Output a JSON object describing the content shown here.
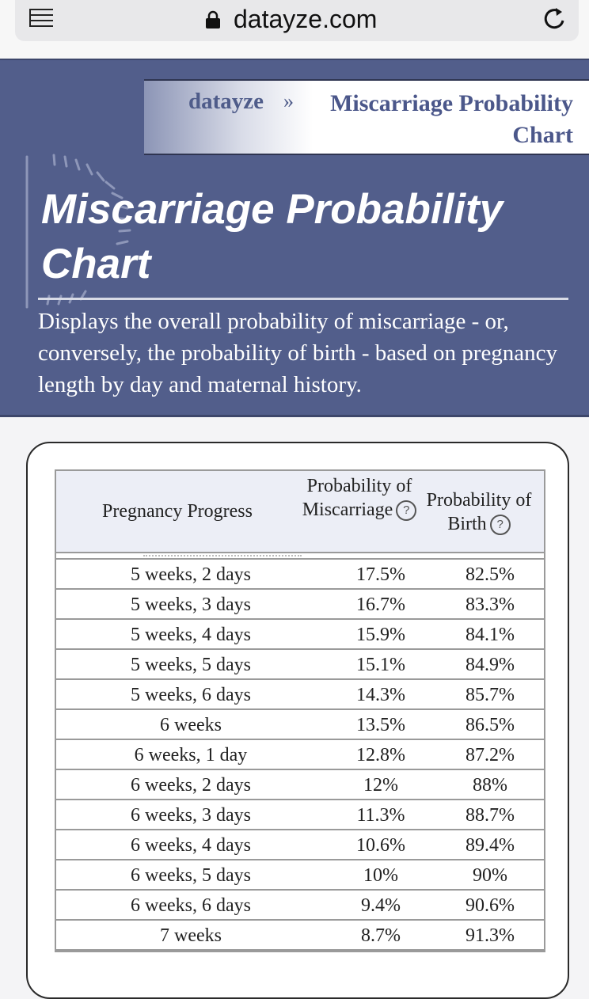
{
  "browser": {
    "url": "datayze.com",
    "icons": [
      "menu-icon",
      "lock-icon",
      "reload-icon"
    ]
  },
  "breadcrumb": {
    "home": "datayze",
    "separator": "»",
    "current": "Miscarriage Probability Chart"
  },
  "hero": {
    "title": "Miscarriage Probability Chart",
    "description": "Displays the overall probability of miscarriage - or, conversely, the probability of birth - based on pregnancy length by day and maternal history."
  },
  "table": {
    "headers": {
      "progress": "Pregnancy Progress",
      "miscarriage": "Probability of Miscarriage",
      "birth": "Probability of Birth",
      "help": "?"
    },
    "rows": [
      {
        "progress": "5 weeks, 2 days",
        "miscarriage": "17.5%",
        "birth": "82.5%"
      },
      {
        "progress": "5 weeks, 3 days",
        "miscarriage": "16.7%",
        "birth": "83.3%"
      },
      {
        "progress": "5 weeks, 4 days",
        "miscarriage": "15.9%",
        "birth": "84.1%"
      },
      {
        "progress": "5 weeks, 5 days",
        "miscarriage": "15.1%",
        "birth": "84.9%"
      },
      {
        "progress": "5 weeks, 6 days",
        "miscarriage": "14.3%",
        "birth": "85.7%"
      },
      {
        "progress": "6 weeks",
        "miscarriage": "13.5%",
        "birth": "86.5%"
      },
      {
        "progress": "6 weeks, 1 day",
        "miscarriage": "12.8%",
        "birth": "87.2%"
      },
      {
        "progress": "6 weeks, 2 days",
        "miscarriage": "12%",
        "birth": "88%"
      },
      {
        "progress": "6 weeks, 3 days",
        "miscarriage": "11.3%",
        "birth": "88.7%"
      },
      {
        "progress": "6 weeks, 4 days",
        "miscarriage": "10.6%",
        "birth": "89.4%"
      },
      {
        "progress": "6 weeks, 5 days",
        "miscarriage": "10%",
        "birth": "90%"
      },
      {
        "progress": "6 weeks, 6 days",
        "miscarriage": "9.4%",
        "birth": "90.6%"
      },
      {
        "progress": "7 weeks",
        "miscarriage": "8.7%",
        "birth": "91.3%"
      }
    ]
  },
  "colors": {
    "hero_bg": "#525e8b",
    "accent_text": "#4b578a",
    "header_bg": "#eceef6"
  }
}
